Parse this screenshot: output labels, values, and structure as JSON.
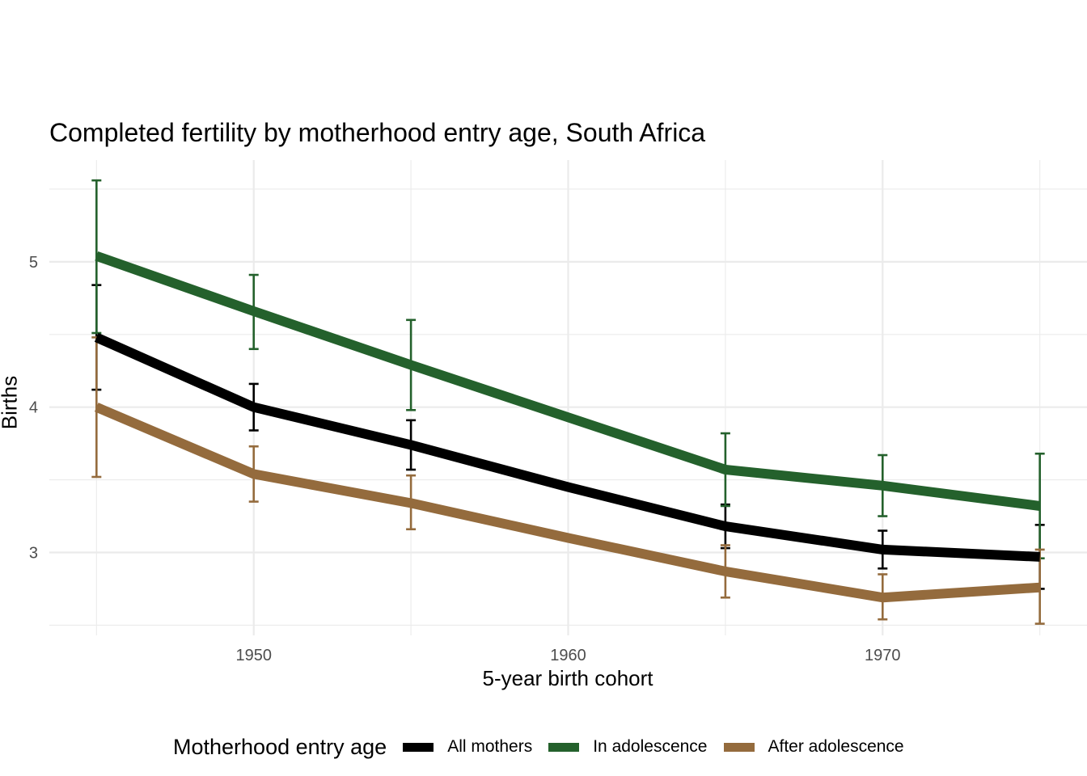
{
  "chart_data": {
    "type": "line",
    "title": "Completed fertility by motherhood entry age,  South Africa",
    "xlabel": "5-year birth cohort",
    "ylabel": "Births",
    "xlim": [
      1943.5,
      1976.5
    ],
    "ylim": [
      2.43,
      5.7
    ],
    "x_ticks": [
      1950,
      1960,
      1970
    ],
    "y_ticks": [
      3,
      4,
      5
    ],
    "grid": true,
    "legend": {
      "title": "Motherhood entry age",
      "position": "bottom"
    },
    "x": [
      1945,
      1950,
      1955,
      1960,
      1965,
      1970,
      1975
    ],
    "series": [
      {
        "name": "All mothers",
        "color": "#000000",
        "values": [
          4.48,
          4.0,
          3.74,
          3.45,
          3.18,
          3.02,
          2.97
        ],
        "errors": [
          [
            1945,
            4.12,
            4.84
          ],
          [
            1950,
            3.84,
            4.16
          ],
          [
            1955,
            3.57,
            3.91
          ],
          [
            1965,
            3.03,
            3.33
          ],
          [
            1970,
            2.89,
            3.15
          ],
          [
            1975,
            2.75,
            3.19
          ]
        ]
      },
      {
        "name": "In adolescence",
        "color": "#24612c",
        "values": [
          5.04,
          4.66,
          4.29,
          3.93,
          3.57,
          3.46,
          3.32
        ],
        "errors": [
          [
            1945,
            4.51,
            5.56
          ],
          [
            1950,
            4.4,
            4.91
          ],
          [
            1955,
            3.98,
            4.6
          ],
          [
            1965,
            3.32,
            3.82
          ],
          [
            1970,
            3.25,
            3.67
          ],
          [
            1975,
            2.96,
            3.68
          ]
        ]
      },
      {
        "name": "After adolescence",
        "color": "#946b3d",
        "values": [
          4.0,
          3.54,
          3.34,
          3.1,
          2.87,
          2.69,
          2.76
        ],
        "errors": [
          [
            1945,
            3.52,
            4.48
          ],
          [
            1950,
            3.35,
            3.73
          ],
          [
            1955,
            3.16,
            3.53
          ],
          [
            1965,
            2.69,
            3.05
          ],
          [
            1970,
            2.54,
            2.85
          ],
          [
            1975,
            2.51,
            3.02
          ]
        ]
      }
    ]
  }
}
